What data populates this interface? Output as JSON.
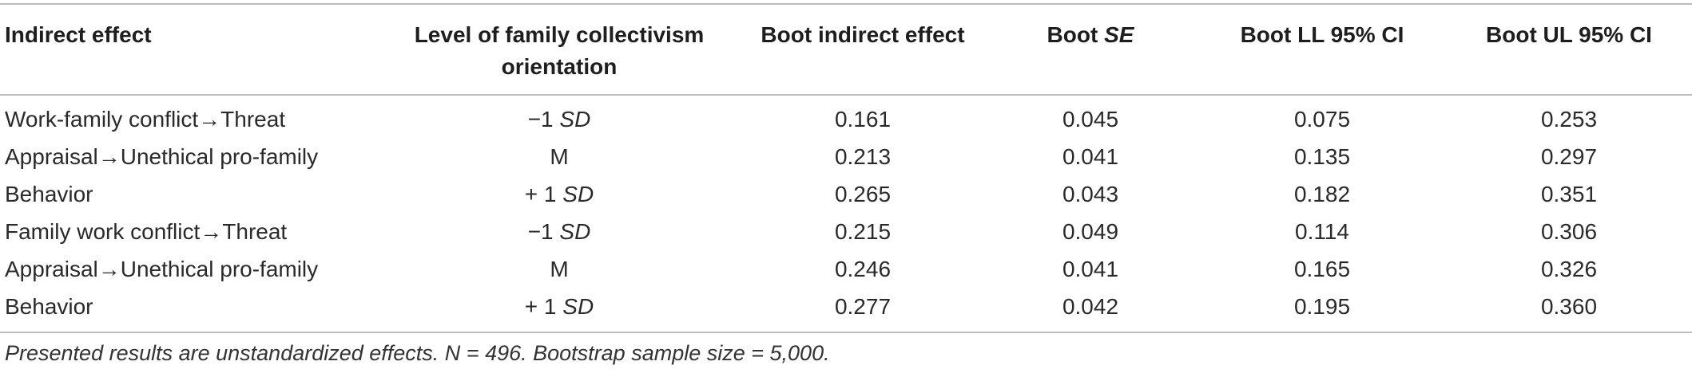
{
  "table": {
    "headers": [
      {
        "text": "Indirect effect"
      },
      {
        "text": "Level of family collectivism orientation"
      },
      {
        "text": "Boot indirect effect"
      },
      {
        "prefix": "Boot ",
        "italic": "SE"
      },
      {
        "text": "Boot LL 95% CI"
      },
      {
        "text": "Boot UL 95% CI"
      }
    ],
    "rows": [
      {
        "effect": "Work-family conflict→Threat",
        "level_prefix": "−1 ",
        "level_italic": "SD",
        "boot_effect": "0.161",
        "boot_se": "0.045",
        "ll": "0.075",
        "ul": "0.253"
      },
      {
        "effect": "Appraisal→Unethical pro-family",
        "level_prefix": "M",
        "level_italic": "",
        "boot_effect": "0.213",
        "boot_se": "0.041",
        "ll": "0.135",
        "ul": "0.297"
      },
      {
        "effect": "Behavior",
        "level_prefix": "+ 1 ",
        "level_italic": "SD",
        "boot_effect": "0.265",
        "boot_se": "0.043",
        "ll": "0.182",
        "ul": "0.351"
      },
      {
        "effect": "Family work conflict→Threat",
        "level_prefix": "−1 ",
        "level_italic": "SD",
        "boot_effect": "0.215",
        "boot_se": "0.049",
        "ll": "0.114",
        "ul": "0.306"
      },
      {
        "effect": "Appraisal→Unethical pro-family",
        "level_prefix": "M",
        "level_italic": "",
        "boot_effect": "0.246",
        "boot_se": "0.041",
        "ll": "0.165",
        "ul": "0.326"
      },
      {
        "effect": "Behavior",
        "level_prefix": "+ 1 ",
        "level_italic": "SD",
        "boot_effect": "0.277",
        "boot_se": "0.042",
        "ll": "0.195",
        "ul": "0.360"
      }
    ],
    "footnote": "Presented results are unstandardized effects. N = 496. Bootstrap sample size = 5,000."
  }
}
